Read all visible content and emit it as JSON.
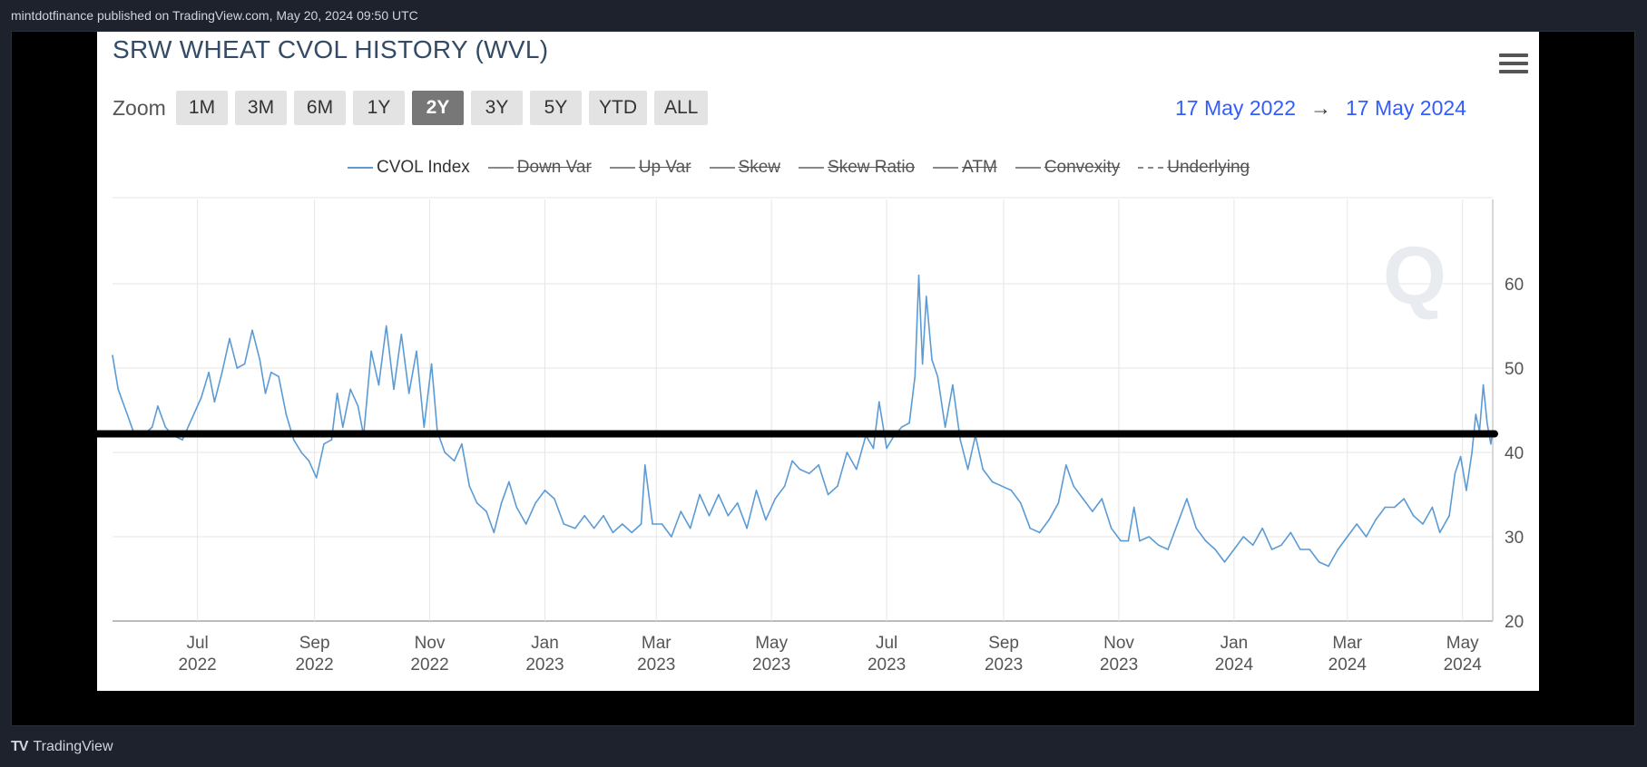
{
  "header": {
    "published": "mintdotfinance published on TradingView.com, May 20, 2024 09:50 UTC"
  },
  "footer": {
    "brand": "TradingView",
    "logo_icon": "tradingview-logo-icon"
  },
  "panel": {
    "title": "SRW WHEAT CVOL HISTORY (WVL)",
    "zoom_label": "Zoom",
    "zoom_buttons": [
      "1M",
      "3M",
      "6M",
      "1Y",
      "2Y",
      "3Y",
      "5Y",
      "YTD",
      "ALL"
    ],
    "zoom_active": "2Y",
    "range_from": "17 May 2022",
    "range_arrow": "→",
    "range_to": "17 May 2024",
    "legend": [
      {
        "label": "CVOL Index",
        "active": true,
        "color": "#5b9bd5"
      },
      {
        "label": "Down Var",
        "active": false
      },
      {
        "label": "Up Var",
        "active": false
      },
      {
        "label": "Skew",
        "active": false
      },
      {
        "label": "Skew Ratio",
        "active": false
      },
      {
        "label": "ATM",
        "active": false
      },
      {
        "label": "Convexity",
        "active": false
      },
      {
        "label": "Underlying",
        "active": false,
        "dashed": true
      }
    ],
    "watermark": "Q"
  },
  "chart_data": {
    "type": "line",
    "title": "SRW WHEAT CVOL HISTORY (WVL)",
    "x_ticks": [
      {
        "date": "2022-07-01",
        "month": "Jul",
        "year": "2022"
      },
      {
        "date": "2022-09-01",
        "month": "Sep",
        "year": "2022"
      },
      {
        "date": "2022-11-01",
        "month": "Nov",
        "year": "2022"
      },
      {
        "date": "2023-01-01",
        "month": "Jan",
        "year": "2023"
      },
      {
        "date": "2023-03-01",
        "month": "Mar",
        "year": "2023"
      },
      {
        "date": "2023-05-01",
        "month": "May",
        "year": "2023"
      },
      {
        "date": "2023-07-01",
        "month": "Jul",
        "year": "2023"
      },
      {
        "date": "2023-09-01",
        "month": "Sep",
        "year": "2023"
      },
      {
        "date": "2023-11-01",
        "month": "Nov",
        "year": "2023"
      },
      {
        "date": "2024-01-01",
        "month": "Jan",
        "year": "2024"
      },
      {
        "date": "2024-03-01",
        "month": "Mar",
        "year": "2024"
      },
      {
        "date": "2024-05-01",
        "month": "May",
        "year": "2024"
      }
    ],
    "x_range": [
      "2022-05-17",
      "2024-05-17"
    ],
    "y_ticks": [
      20,
      30,
      40,
      50,
      60
    ],
    "ylim": [
      20,
      70
    ],
    "grid": true,
    "horizontal_line": {
      "y": 42.2,
      "color": "#000000"
    },
    "series": [
      {
        "name": "CVOL Index",
        "color": "#5b9bd5",
        "points": [
          [
            "2022-05-17",
            51.5
          ],
          [
            "2022-05-20",
            47.5
          ],
          [
            "2022-05-24",
            45.0
          ],
          [
            "2022-05-28",
            42.5
          ],
          [
            "2022-06-02",
            42.0
          ],
          [
            "2022-06-07",
            43.0
          ],
          [
            "2022-06-10",
            45.5
          ],
          [
            "2022-06-14",
            43.0
          ],
          [
            "2022-06-18",
            42.0
          ],
          [
            "2022-06-23",
            41.5
          ],
          [
            "2022-06-28",
            44.0
          ],
          [
            "2022-07-03",
            46.5
          ],
          [
            "2022-07-07",
            49.5
          ],
          [
            "2022-07-10",
            46.0
          ],
          [
            "2022-07-14",
            49.5
          ],
          [
            "2022-07-18",
            53.5
          ],
          [
            "2022-07-22",
            50.0
          ],
          [
            "2022-07-26",
            50.5
          ],
          [
            "2022-07-30",
            54.5
          ],
          [
            "2022-08-03",
            51.0
          ],
          [
            "2022-08-06",
            47.0
          ],
          [
            "2022-08-09",
            49.5
          ],
          [
            "2022-08-13",
            49.0
          ],
          [
            "2022-08-17",
            44.5
          ],
          [
            "2022-08-21",
            41.5
          ],
          [
            "2022-08-25",
            40.0
          ],
          [
            "2022-08-29",
            39.0
          ],
          [
            "2022-09-02",
            37.0
          ],
          [
            "2022-09-06",
            41.0
          ],
          [
            "2022-09-10",
            41.5
          ],
          [
            "2022-09-13",
            47.0
          ],
          [
            "2022-09-16",
            43.0
          ],
          [
            "2022-09-20",
            47.5
          ],
          [
            "2022-09-24",
            45.5
          ],
          [
            "2022-09-27",
            42.0
          ],
          [
            "2022-10-01",
            52.0
          ],
          [
            "2022-10-05",
            48.0
          ],
          [
            "2022-10-09",
            55.0
          ],
          [
            "2022-10-13",
            47.5
          ],
          [
            "2022-10-17",
            54.0
          ],
          [
            "2022-10-21",
            47.0
          ],
          [
            "2022-10-25",
            52.0
          ],
          [
            "2022-10-29",
            43.0
          ],
          [
            "2022-11-02",
            50.5
          ],
          [
            "2022-11-05",
            42.5
          ],
          [
            "2022-11-09",
            40.0
          ],
          [
            "2022-11-14",
            39.0
          ],
          [
            "2022-11-18",
            41.0
          ],
          [
            "2022-11-22",
            36.0
          ],
          [
            "2022-11-26",
            34.0
          ],
          [
            "2022-12-01",
            33.0
          ],
          [
            "2022-12-05",
            30.5
          ],
          [
            "2022-12-09",
            34.0
          ],
          [
            "2022-12-13",
            36.5
          ],
          [
            "2022-12-17",
            33.5
          ],
          [
            "2022-12-22",
            31.5
          ],
          [
            "2022-12-27",
            34.0
          ],
          [
            "2023-01-01",
            35.5
          ],
          [
            "2023-01-06",
            34.5
          ],
          [
            "2023-01-11",
            31.5
          ],
          [
            "2023-01-17",
            31.0
          ],
          [
            "2023-01-22",
            32.5
          ],
          [
            "2023-01-27",
            31.0
          ],
          [
            "2023-02-01",
            32.5
          ],
          [
            "2023-02-06",
            30.5
          ],
          [
            "2023-02-11",
            31.5
          ],
          [
            "2023-02-16",
            30.5
          ],
          [
            "2023-02-21",
            31.5
          ],
          [
            "2023-02-23",
            38.5
          ],
          [
            "2023-02-27",
            31.5
          ],
          [
            "2023-03-04",
            31.5
          ],
          [
            "2023-03-09",
            30.0
          ],
          [
            "2023-03-14",
            33.0
          ],
          [
            "2023-03-19",
            31.0
          ],
          [
            "2023-03-24",
            35.0
          ],
          [
            "2023-03-29",
            32.5
          ],
          [
            "2023-04-03",
            35.0
          ],
          [
            "2023-04-08",
            32.5
          ],
          [
            "2023-04-13",
            34.0
          ],
          [
            "2023-04-18",
            31.0
          ],
          [
            "2023-04-23",
            35.5
          ],
          [
            "2023-04-28",
            32.0
          ],
          [
            "2023-05-03",
            34.5
          ],
          [
            "2023-05-08",
            36.0
          ],
          [
            "2023-05-12",
            39.0
          ],
          [
            "2023-05-16",
            38.0
          ],
          [
            "2023-05-21",
            37.5
          ],
          [
            "2023-05-26",
            38.5
          ],
          [
            "2023-05-31",
            35.0
          ],
          [
            "2023-06-05",
            36.0
          ],
          [
            "2023-06-10",
            40.0
          ],
          [
            "2023-06-15",
            38.0
          ],
          [
            "2023-06-20",
            42.0
          ],
          [
            "2023-06-24",
            40.5
          ],
          [
            "2023-06-27",
            46.0
          ],
          [
            "2023-07-01",
            40.5
          ],
          [
            "2023-07-05",
            42.0
          ],
          [
            "2023-07-09",
            43.0
          ],
          [
            "2023-07-13",
            43.5
          ],
          [
            "2023-07-16",
            49.0
          ],
          [
            "2023-07-18",
            61.0
          ],
          [
            "2023-07-20",
            50.5
          ],
          [
            "2023-07-22",
            58.5
          ],
          [
            "2023-07-25",
            51.0
          ],
          [
            "2023-07-28",
            49.0
          ],
          [
            "2023-08-01",
            43.0
          ],
          [
            "2023-08-05",
            48.0
          ],
          [
            "2023-08-09",
            41.5
          ],
          [
            "2023-08-13",
            38.0
          ],
          [
            "2023-08-17",
            42.0
          ],
          [
            "2023-08-21",
            38.0
          ],
          [
            "2023-08-26",
            36.5
          ],
          [
            "2023-08-31",
            36.0
          ],
          [
            "2023-09-05",
            35.5
          ],
          [
            "2023-09-10",
            34.0
          ],
          [
            "2023-09-15",
            31.0
          ],
          [
            "2023-09-20",
            30.5
          ],
          [
            "2023-09-25",
            32.0
          ],
          [
            "2023-09-30",
            34.0
          ],
          [
            "2023-10-04",
            38.5
          ],
          [
            "2023-10-08",
            36.0
          ],
          [
            "2023-10-13",
            34.5
          ],
          [
            "2023-10-18",
            33.0
          ],
          [
            "2023-10-23",
            34.5
          ],
          [
            "2023-10-28",
            31.0
          ],
          [
            "2023-11-02",
            29.5
          ],
          [
            "2023-11-06",
            29.5
          ],
          [
            "2023-11-09",
            33.5
          ],
          [
            "2023-11-12",
            29.5
          ],
          [
            "2023-11-17",
            30.0
          ],
          [
            "2023-11-22",
            29.0
          ],
          [
            "2023-11-27",
            28.5
          ],
          [
            "2023-12-02",
            31.5
          ],
          [
            "2023-12-07",
            34.5
          ],
          [
            "2023-12-12",
            31.0
          ],
          [
            "2023-12-17",
            29.5
          ],
          [
            "2023-12-22",
            28.5
          ],
          [
            "2023-12-27",
            27.0
          ],
          [
            "2024-01-01",
            28.5
          ],
          [
            "2024-01-06",
            30.0
          ],
          [
            "2024-01-11",
            29.0
          ],
          [
            "2024-01-16",
            31.0
          ],
          [
            "2024-01-21",
            28.5
          ],
          [
            "2024-01-26",
            29.0
          ],
          [
            "2024-01-31",
            30.5
          ],
          [
            "2024-02-05",
            28.5
          ],
          [
            "2024-02-10",
            28.5
          ],
          [
            "2024-02-15",
            27.0
          ],
          [
            "2024-02-20",
            26.5
          ],
          [
            "2024-02-25",
            28.5
          ],
          [
            "2024-03-01",
            30.0
          ],
          [
            "2024-03-06",
            31.5
          ],
          [
            "2024-03-11",
            30.0
          ],
          [
            "2024-03-16",
            32.0
          ],
          [
            "2024-03-21",
            33.5
          ],
          [
            "2024-03-26",
            33.5
          ],
          [
            "2024-03-31",
            34.5
          ],
          [
            "2024-04-05",
            32.5
          ],
          [
            "2024-04-10",
            31.5
          ],
          [
            "2024-04-15",
            33.5
          ],
          [
            "2024-04-19",
            30.5
          ],
          [
            "2024-04-24",
            32.5
          ],
          [
            "2024-04-27",
            37.5
          ],
          [
            "2024-04-30",
            39.5
          ],
          [
            "2024-05-03",
            35.5
          ],
          [
            "2024-05-06",
            40.0
          ],
          [
            "2024-05-08",
            44.5
          ],
          [
            "2024-05-10",
            42.5
          ],
          [
            "2024-05-12",
            48.0
          ],
          [
            "2024-05-14",
            43.5
          ],
          [
            "2024-05-16",
            41.0
          ],
          [
            "2024-05-17",
            42.5
          ]
        ]
      }
    ]
  }
}
